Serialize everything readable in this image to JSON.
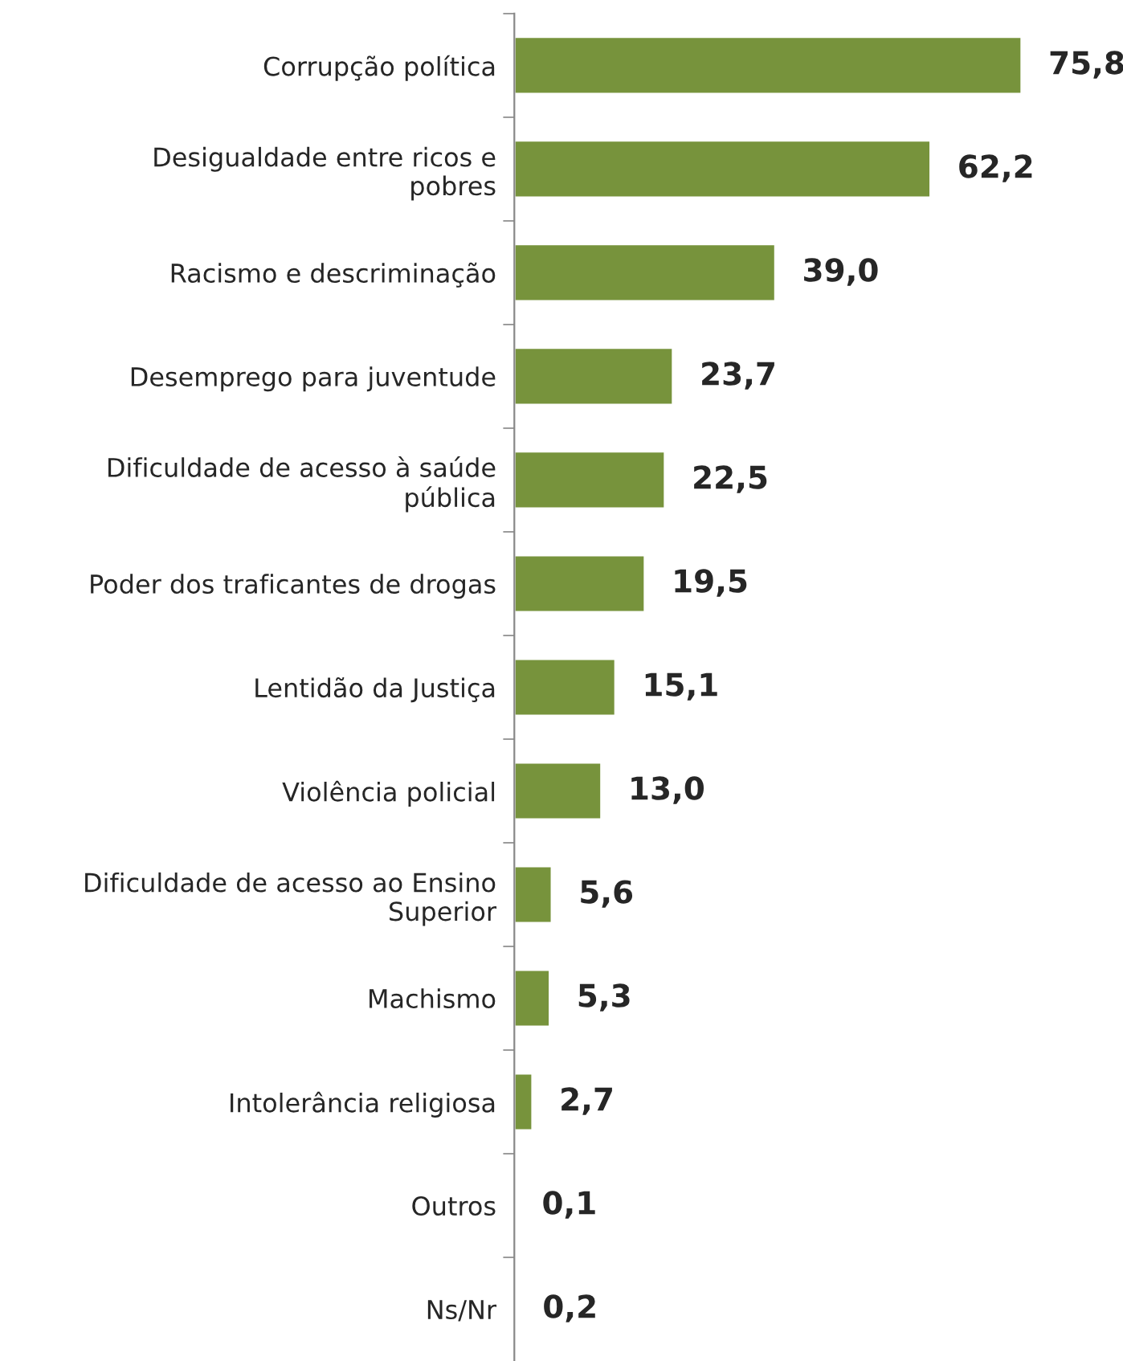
{
  "chart_data": {
    "type": "bar",
    "orientation": "horizontal",
    "categories": [
      "Corrupção política",
      "Desigualdade entre ricos e\npobres",
      "Racismo e descriminação",
      "Desemprego para juventude",
      "Dificuldade de acesso à saúde\npública",
      "Poder dos traficantes de drogas",
      "Lentidão da Justiça",
      "Violência policial",
      "Dificuldade de acesso ao Ensino\nSuperior",
      "Machismo",
      "Intolerância religiosa",
      "Outros",
      "Ns/Nr"
    ],
    "values": [
      75.8,
      62.2,
      39.0,
      23.7,
      22.5,
      19.5,
      15.1,
      13.0,
      5.6,
      5.3,
      2.7,
      0.1,
      0.2
    ],
    "value_labels": [
      "75,8",
      "62,2",
      "39,0",
      "23,7",
      "22,5",
      "19,5",
      "15,1",
      "13,0",
      "5,6",
      "5,3",
      "2,7",
      "0,1",
      "0,2"
    ],
    "color": "#77933c",
    "grid": false,
    "legend": false
  }
}
